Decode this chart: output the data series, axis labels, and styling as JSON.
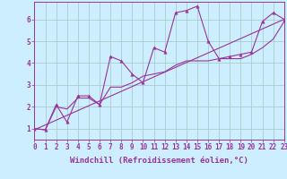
{
  "background_color": "#cceeff",
  "grid_color": "#aacccc",
  "line_color": "#993399",
  "marker_color": "#993399",
  "xlabel": "Windchill (Refroidissement éolien,°C)",
  "xlim": [
    0,
    23
  ],
  "ylim": [
    0.5,
    6.8
  ],
  "yticks": [
    1,
    2,
    3,
    4,
    5,
    6
  ],
  "xticks": [
    0,
    1,
    2,
    3,
    4,
    5,
    6,
    7,
    8,
    9,
    10,
    11,
    12,
    13,
    14,
    15,
    16,
    17,
    18,
    19,
    20,
    21,
    22,
    23
  ],
  "series1_x": [
    0,
    1,
    2,
    3,
    4,
    5,
    6,
    7,
    8,
    9,
    10,
    11,
    12,
    13,
    14,
    15,
    16,
    17,
    18,
    19,
    20,
    21,
    22,
    23
  ],
  "series1_y": [
    1.0,
    0.95,
    2.1,
    1.3,
    2.5,
    2.5,
    2.1,
    4.3,
    4.1,
    3.5,
    3.1,
    4.7,
    4.5,
    6.3,
    6.4,
    6.6,
    5.0,
    4.2,
    4.3,
    4.4,
    4.5,
    5.9,
    6.3,
    6.0
  ],
  "series2_x": [
    0,
    23
  ],
  "series2_y": [
    0.95,
    6.0
  ],
  "series3_x": [
    0,
    1,
    2,
    3,
    4,
    5,
    6,
    7,
    8,
    9,
    10,
    11,
    12,
    13,
    14,
    15,
    16,
    17,
    18,
    19,
    20,
    21,
    22,
    23
  ],
  "series3_y": [
    1.0,
    0.95,
    2.0,
    1.9,
    2.4,
    2.4,
    2.1,
    2.9,
    2.9,
    3.1,
    3.4,
    3.5,
    3.6,
    3.9,
    4.1,
    4.1,
    4.1,
    4.2,
    4.2,
    4.2,
    4.4,
    4.7,
    5.1,
    5.9
  ],
  "xlabel_fontsize": 6.5,
  "tick_fontsize": 5.5,
  "linewidth": 0.8,
  "markersize": 2.5
}
